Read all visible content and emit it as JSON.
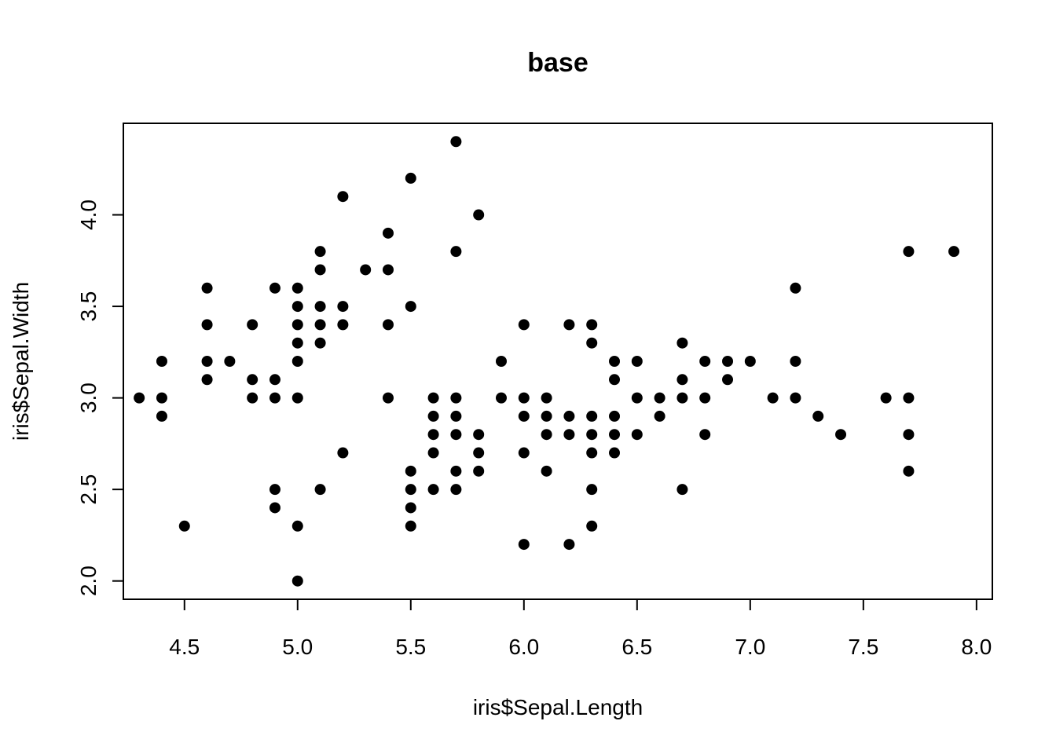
{
  "chart_data": {
    "type": "scatter",
    "title": "base",
    "xlabel": "iris$Sepal.Length",
    "ylabel": "iris$Sepal.Width",
    "xlim": [
      4.23,
      8.07
    ],
    "ylim": [
      1.9,
      4.5
    ],
    "xticks": [
      "4.5",
      "5.0",
      "5.5",
      "6.0",
      "6.5",
      "7.0",
      "7.5",
      "8.0"
    ],
    "yticks": [
      "2.0",
      "2.5",
      "3.0",
      "3.5",
      "4.0"
    ],
    "grid": false,
    "legend": "none",
    "point_color": "#000000",
    "points": [
      [
        4.3,
        3.0
      ],
      [
        4.4,
        2.9
      ],
      [
        4.4,
        3.0
      ],
      [
        4.4,
        3.2
      ],
      [
        4.5,
        2.3
      ],
      [
        4.6,
        3.1
      ],
      [
        4.6,
        3.2
      ],
      [
        4.6,
        3.4
      ],
      [
        4.6,
        3.6
      ],
      [
        4.7,
        3.2
      ],
      [
        4.8,
        3.0
      ],
      [
        4.8,
        3.1
      ],
      [
        4.8,
        3.4
      ],
      [
        4.9,
        2.4
      ],
      [
        4.9,
        2.5
      ],
      [
        4.9,
        3.0
      ],
      [
        4.9,
        3.1
      ],
      [
        4.9,
        3.6
      ],
      [
        5.0,
        2.0
      ],
      [
        5.0,
        2.3
      ],
      [
        5.0,
        3.0
      ],
      [
        5.0,
        3.2
      ],
      [
        5.0,
        3.3
      ],
      [
        5.0,
        3.4
      ],
      [
        5.0,
        3.5
      ],
      [
        5.0,
        3.6
      ],
      [
        5.1,
        2.5
      ],
      [
        5.1,
        3.3
      ],
      [
        5.1,
        3.4
      ],
      [
        5.1,
        3.5
      ],
      [
        5.1,
        3.7
      ],
      [
        5.1,
        3.8
      ],
      [
        5.2,
        2.7
      ],
      [
        5.2,
        3.4
      ],
      [
        5.2,
        3.5
      ],
      [
        5.2,
        4.1
      ],
      [
        5.3,
        3.7
      ],
      [
        5.4,
        3.0
      ],
      [
        5.4,
        3.4
      ],
      [
        5.4,
        3.7
      ],
      [
        5.4,
        3.9
      ],
      [
        5.5,
        2.3
      ],
      [
        5.5,
        2.4
      ],
      [
        5.5,
        2.5
      ],
      [
        5.5,
        2.6
      ],
      [
        5.5,
        3.5
      ],
      [
        5.5,
        4.2
      ],
      [
        5.6,
        2.5
      ],
      [
        5.6,
        2.7
      ],
      [
        5.6,
        2.8
      ],
      [
        5.6,
        2.9
      ],
      [
        5.6,
        3.0
      ],
      [
        5.7,
        2.5
      ],
      [
        5.7,
        2.6
      ],
      [
        5.7,
        2.8
      ],
      [
        5.7,
        2.9
      ],
      [
        5.7,
        3.0
      ],
      [
        5.7,
        3.8
      ],
      [
        5.7,
        4.4
      ],
      [
        5.8,
        2.6
      ],
      [
        5.8,
        2.7
      ],
      [
        5.8,
        2.8
      ],
      [
        5.8,
        4.0
      ],
      [
        5.9,
        3.0
      ],
      [
        5.9,
        3.2
      ],
      [
        6.0,
        2.2
      ],
      [
        6.0,
        2.7
      ],
      [
        6.0,
        2.9
      ],
      [
        6.0,
        3.0
      ],
      [
        6.0,
        3.4
      ],
      [
        6.1,
        2.6
      ],
      [
        6.1,
        2.8
      ],
      [
        6.1,
        2.9
      ],
      [
        6.1,
        3.0
      ],
      [
        6.2,
        2.2
      ],
      [
        6.2,
        2.8
      ],
      [
        6.2,
        2.9
      ],
      [
        6.2,
        3.4
      ],
      [
        6.3,
        2.3
      ],
      [
        6.3,
        2.5
      ],
      [
        6.3,
        2.7
      ],
      [
        6.3,
        2.8
      ],
      [
        6.3,
        2.9
      ],
      [
        6.3,
        3.3
      ],
      [
        6.3,
        3.4
      ],
      [
        6.4,
        2.7
      ],
      [
        6.4,
        2.8
      ],
      [
        6.4,
        2.9
      ],
      [
        6.4,
        3.1
      ],
      [
        6.4,
        3.2
      ],
      [
        6.5,
        2.8
      ],
      [
        6.5,
        3.0
      ],
      [
        6.5,
        3.2
      ],
      [
        6.6,
        2.9
      ],
      [
        6.6,
        3.0
      ],
      [
        6.7,
        2.5
      ],
      [
        6.7,
        3.0
      ],
      [
        6.7,
        3.1
      ],
      [
        6.7,
        3.3
      ],
      [
        6.8,
        2.8
      ],
      [
        6.8,
        3.0
      ],
      [
        6.8,
        3.2
      ],
      [
        6.9,
        3.1
      ],
      [
        6.9,
        3.2
      ],
      [
        7.0,
        3.2
      ],
      [
        7.1,
        3.0
      ],
      [
        7.2,
        3.0
      ],
      [
        7.2,
        3.2
      ],
      [
        7.2,
        3.6
      ],
      [
        7.3,
        2.9
      ],
      [
        7.4,
        2.8
      ],
      [
        7.6,
        3.0
      ],
      [
        7.7,
        2.6
      ],
      [
        7.7,
        2.8
      ],
      [
        7.7,
        3.0
      ],
      [
        7.7,
        3.8
      ],
      [
        7.9,
        3.8
      ]
    ]
  }
}
